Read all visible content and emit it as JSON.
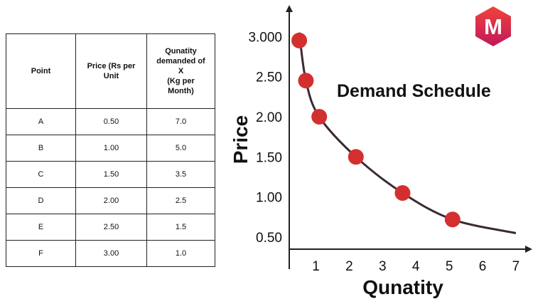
{
  "table": {
    "headers": [
      "Point",
      "Price (Rs per Unit",
      "Qunatity demanded of X (Kg per Month)"
    ],
    "rows": [
      [
        "A",
        "0.50",
        "7.0"
      ],
      [
        "B",
        "1.00",
        "5.0"
      ],
      [
        "C",
        "1.50",
        "3.5"
      ],
      [
        "D",
        "2.00",
        "2.5"
      ],
      [
        "E",
        "2.50",
        "1.5"
      ],
      [
        "F",
        "3.00",
        "1.0"
      ]
    ]
  },
  "chart_data": {
    "type": "line",
    "title": "Demand Schedule",
    "xlabel": "Qunatity",
    "ylabel": "Price",
    "x_ticks": [
      "1",
      "2",
      "3",
      "4",
      "5",
      "6",
      "7"
    ],
    "y_ticks": [
      "0.50",
      "1.00",
      "1.50",
      "2.00",
      "2.50",
      "3.000"
    ],
    "xlim": [
      0.2,
      7.3
    ],
    "ylim": [
      0.35,
      3.1
    ],
    "points": [
      {
        "x": 0.5,
        "y": 2.95
      },
      {
        "x": 0.7,
        "y": 2.45
      },
      {
        "x": 1.1,
        "y": 2.0
      },
      {
        "x": 2.2,
        "y": 1.5
      },
      {
        "x": 3.6,
        "y": 1.05
      },
      {
        "x": 5.1,
        "y": 0.72
      }
    ],
    "curve": [
      {
        "x": 0.5,
        "y": 3.05
      },
      {
        "x": 0.7,
        "y": 2.45
      },
      {
        "x": 1.1,
        "y": 2.0
      },
      {
        "x": 2.2,
        "y": 1.5
      },
      {
        "x": 3.6,
        "y": 1.05
      },
      {
        "x": 5.1,
        "y": 0.72
      },
      {
        "x": 7.0,
        "y": 0.55
      }
    ],
    "grid": false,
    "legend": "none",
    "marker_color": "#d32f2f",
    "line_color": "#3a2a33"
  },
  "logo": {
    "letter": "M",
    "color_top": "#f0433a",
    "color_bottom": "#c2185b"
  }
}
